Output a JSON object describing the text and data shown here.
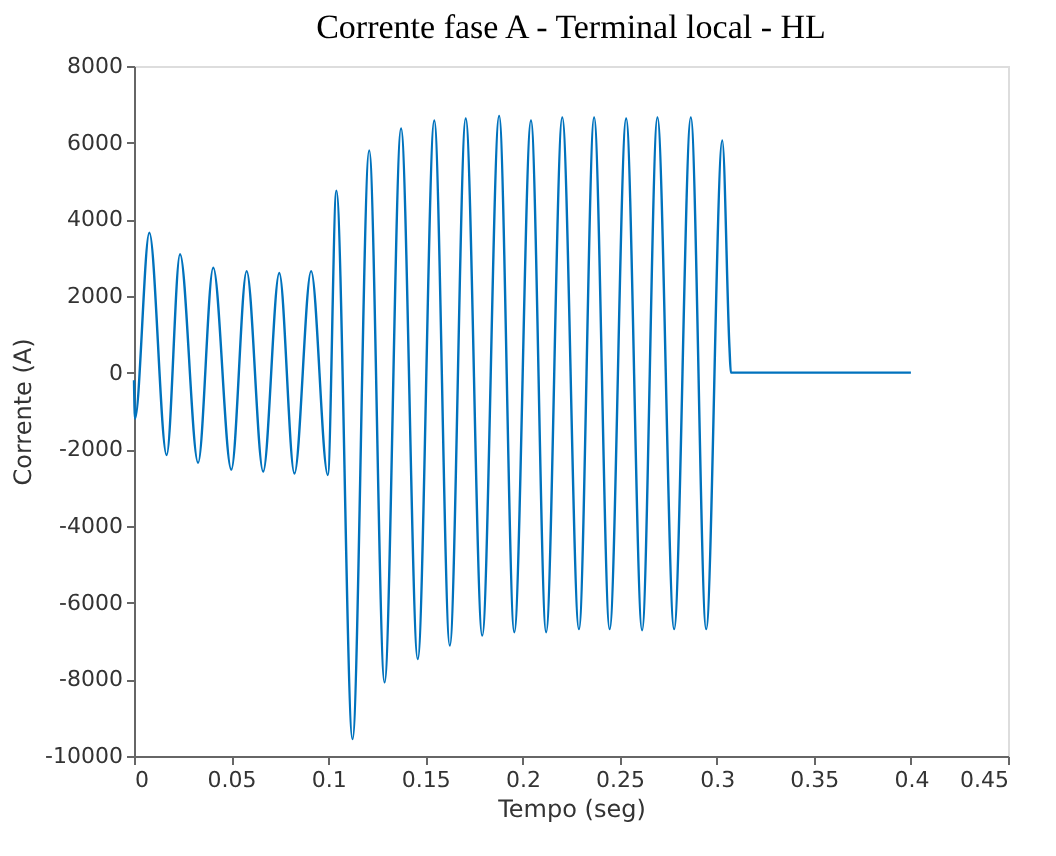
{
  "chart_data": {
    "type": "line",
    "title": "Corrente fase A - Terminal local - HL",
    "xlabel": "Tempo (seg)",
    "ylabel": "Corrente (A)",
    "xlim": [
      0,
      0.45
    ],
    "xticks": [
      0,
      0.05,
      0.1,
      0.15,
      0.2,
      0.25,
      0.3,
      0.35,
      0.4,
      0.45
    ],
    "ylim": [
      -10000,
      8000
    ],
    "yticks": [
      -10000,
      -8000,
      -6000,
      -4000,
      -2000,
      0,
      2000,
      4000,
      6000,
      8000
    ],
    "grid": false,
    "legend": false,
    "line_style": "solid",
    "marker": "none",
    "series": [
      {
        "color": "#0072bd",
        "x": [
          0,
          0.0005,
          0.0079,
          0.0168,
          0.0237,
          0.033,
          0.0408,
          0.0501,
          0.058,
          0.0665,
          0.0748,
          0.0826,
          0.0912,
          0.0998,
          0.1042,
          0.1125,
          0.1211,
          0.129,
          0.1375,
          0.1461,
          0.1546,
          0.1626,
          0.1708,
          0.1793,
          0.188,
          0.1958,
          0.2044,
          0.2122,
          0.2205,
          0.2291,
          0.2369,
          0.2449,
          0.2534,
          0.2616,
          0.2695,
          0.2781,
          0.2867,
          0.2946,
          0.3029,
          0.3066,
          0.3073,
          0.4
        ],
        "values": [
          -200,
          -1200,
          3650,
          -2150,
          3090,
          -2350,
          2740,
          -2530,
          2650,
          -2580,
          2600,
          -2630,
          2650,
          -2670,
          4750,
          -9560,
          5800,
          -8080,
          6370,
          -7470,
          6580,
          -7120,
          6630,
          -6860,
          6700,
          -6770,
          6580,
          -6770,
          6660,
          -6690,
          6660,
          -6690,
          6630,
          -6720,
          6660,
          -6690,
          6660,
          -6690,
          6060,
          640,
          0,
          0
        ]
      }
    ]
  }
}
